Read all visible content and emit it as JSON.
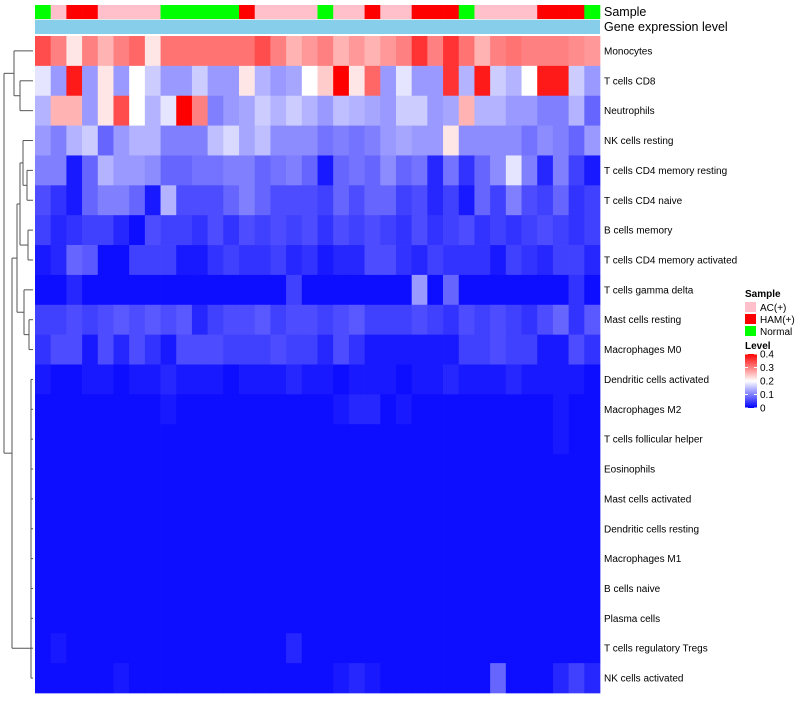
{
  "chart_data": {
    "type": "heatmap",
    "annotation_tracks": [
      "Sample",
      "Gene expression level"
    ],
    "rows": [
      "Monocytes",
      "T cells CD8",
      "Neutrophils",
      "NK cells resting",
      "T cells CD4 memory resting",
      "T cells CD4 naive",
      "B cells memory",
      "T cells CD4 memory activated",
      "T cells gamma delta",
      "Mast cells resting",
      "Macrophages M0",
      "Dendritic cells activated",
      "Macrophages M2",
      "T cells follicular helper",
      "Eosinophils",
      "Mast cells activated",
      "Dendritic cells resting",
      "Macrophages M1",
      "B cells naive",
      "Plasma cells",
      "T cells regulatory  Tregs",
      "NK cells activated"
    ],
    "sample_groups": [
      "N",
      "AC",
      "H",
      "H",
      "AC",
      "AC",
      "AC",
      "AC",
      "N",
      "N",
      "N",
      "N",
      "N",
      "H",
      "AC",
      "AC",
      "AC",
      "AC",
      "N",
      "AC",
      "AC",
      "H",
      "AC",
      "AC",
      "H",
      "H",
      "H",
      "N",
      "AC",
      "AC",
      "AC",
      "AC",
      "H",
      "H",
      "H",
      "N"
    ],
    "values": [
      [
        0.34,
        0.3,
        0.22,
        0.3,
        0.26,
        0.3,
        0.32,
        0.22,
        0.31,
        0.31,
        0.31,
        0.31,
        0.31,
        0.31,
        0.34,
        0.3,
        0.26,
        0.28,
        0.3,
        0.26,
        0.28,
        0.26,
        0.28,
        0.3,
        0.36,
        0.3,
        0.36,
        0.31,
        0.26,
        0.3,
        0.31,
        0.3,
        0.3,
        0.3,
        0.29,
        0.28
      ],
      [
        0.18,
        0.12,
        0.38,
        0.12,
        0.22,
        0.12,
        0.2,
        0.16,
        0.12,
        0.12,
        0.16,
        0.12,
        0.12,
        0.22,
        0.14,
        0.12,
        0.13,
        0.2,
        0.24,
        0.4,
        0.22,
        0.32,
        0.12,
        0.18,
        0.12,
        0.12,
        0.36,
        0.14,
        0.38,
        0.16,
        0.14,
        0.2,
        0.38,
        0.38,
        0.16,
        0.12
      ],
      [
        0.14,
        0.26,
        0.26,
        0.12,
        0.22,
        0.34,
        0.2,
        0.14,
        0.18,
        0.4,
        0.3,
        0.1,
        0.12,
        0.13,
        0.16,
        0.14,
        0.16,
        0.14,
        0.12,
        0.15,
        0.14,
        0.13,
        0.12,
        0.16,
        0.16,
        0.12,
        0.13,
        0.26,
        0.14,
        0.14,
        0.12,
        0.12,
        0.1,
        0.1,
        0.14,
        0.08
      ],
      [
        0.12,
        0.1,
        0.14,
        0.16,
        0.08,
        0.12,
        0.14,
        0.14,
        0.1,
        0.1,
        0.1,
        0.15,
        0.17,
        0.13,
        0.15,
        0.11,
        0.11,
        0.11,
        0.09,
        0.1,
        0.09,
        0.1,
        0.12,
        0.13,
        0.12,
        0.12,
        0.22,
        0.11,
        0.11,
        0.11,
        0.11,
        0.09,
        0.11,
        0.1,
        0.08,
        0.12
      ],
      [
        0.1,
        0.1,
        0.02,
        0.08,
        0.14,
        0.12,
        0.12,
        0.11,
        0.08,
        0.08,
        0.09,
        0.09,
        0.1,
        0.1,
        0.08,
        0.09,
        0.1,
        0.08,
        0.02,
        0.08,
        0.09,
        0.08,
        0.11,
        0.08,
        0.09,
        0.03,
        0.09,
        0.04,
        0.08,
        0.11,
        0.18,
        0.1,
        0.03,
        0.1,
        0.05,
        0.02
      ],
      [
        0.06,
        0.04,
        0.02,
        0.08,
        0.1,
        0.1,
        0.08,
        0.02,
        0.14,
        0.06,
        0.06,
        0.06,
        0.08,
        0.1,
        0.08,
        0.06,
        0.06,
        0.06,
        0.05,
        0.08,
        0.06,
        0.08,
        0.08,
        0.05,
        0.06,
        0.03,
        0.05,
        0.02,
        0.08,
        0.05,
        0.1,
        0.06,
        0.05,
        0.08,
        0.04,
        0.05
      ],
      [
        0.05,
        0.03,
        0.04,
        0.05,
        0.05,
        0.03,
        0.01,
        0.06,
        0.05,
        0.05,
        0.04,
        0.06,
        0.04,
        0.06,
        0.05,
        0.06,
        0.05,
        0.06,
        0.04,
        0.06,
        0.05,
        0.06,
        0.05,
        0.04,
        0.06,
        0.04,
        0.05,
        0.06,
        0.04,
        0.05,
        0.04,
        0.05,
        0.06,
        0.05,
        0.04,
        0.05
      ],
      [
        0.02,
        0.03,
        0.08,
        0.07,
        0.01,
        0.01,
        0.05,
        0.05,
        0.05,
        0.02,
        0.02,
        0.04,
        0.05,
        0.04,
        0.04,
        0.05,
        0.03,
        0.04,
        0.02,
        0.03,
        0.03,
        0.06,
        0.06,
        0.04,
        0.03,
        0.05,
        0.04,
        0.04,
        0.04,
        0.02,
        0.05,
        0.04,
        0.03,
        0.05,
        0.05,
        0.03
      ],
      [
        0.01,
        0.01,
        0.03,
        0.01,
        0.01,
        0.01,
        0.01,
        0.01,
        0.01,
        0.01,
        0.01,
        0.01,
        0.01,
        0.01,
        0.01,
        0.01,
        0.05,
        0.01,
        0.01,
        0.01,
        0.01,
        0.01,
        0.01,
        0.01,
        0.12,
        0.01,
        0.08,
        0.01,
        0.01,
        0.01,
        0.01,
        0.01,
        0.01,
        0.01,
        0.04,
        0.01
      ],
      [
        0.05,
        0.05,
        0.06,
        0.05,
        0.06,
        0.07,
        0.06,
        0.07,
        0.06,
        0.07,
        0.03,
        0.05,
        0.06,
        0.06,
        0.07,
        0.05,
        0.06,
        0.06,
        0.05,
        0.06,
        0.07,
        0.05,
        0.05,
        0.05,
        0.06,
        0.05,
        0.04,
        0.06,
        0.05,
        0.06,
        0.05,
        0.04,
        0.06,
        0.08,
        0.04,
        0.07
      ],
      [
        0.04,
        0.06,
        0.06,
        0.02,
        0.06,
        0.03,
        0.06,
        0.04,
        0.02,
        0.06,
        0.06,
        0.06,
        0.05,
        0.05,
        0.05,
        0.06,
        0.05,
        0.05,
        0.03,
        0.06,
        0.04,
        0.02,
        0.02,
        0.02,
        0.02,
        0.02,
        0.02,
        0.05,
        0.05,
        0.06,
        0.05,
        0.05,
        0.02,
        0.02,
        0.06,
        0.04
      ],
      [
        0.02,
        0.01,
        0.01,
        0.02,
        0.02,
        0.01,
        0.02,
        0.02,
        0.03,
        0.02,
        0.02,
        0.02,
        0.01,
        0.02,
        0.02,
        0.02,
        0.03,
        0.02,
        0.02,
        0.01,
        0.02,
        0.02,
        0.02,
        0.01,
        0.02,
        0.02,
        0.03,
        0.02,
        0.02,
        0.02,
        0.03,
        0.02,
        0.02,
        0.02,
        0.02,
        0.01
      ],
      [
        0.01,
        0.01,
        0.01,
        0.01,
        0.01,
        0.01,
        0.01,
        0.01,
        0.02,
        0.01,
        0.01,
        0.01,
        0.01,
        0.01,
        0.01,
        0.01,
        0.01,
        0.01,
        0.01,
        0.02,
        0.03,
        0.03,
        0.01,
        0.02,
        0.01,
        0.01,
        0.01,
        0.01,
        0.01,
        0.01,
        0.01,
        0.01,
        0.01,
        0.02,
        0.01,
        0.01
      ],
      [
        0.01,
        0.01,
        0.01,
        0.01,
        0.01,
        0.01,
        0.01,
        0.01,
        0.01,
        0.01,
        0.01,
        0.01,
        0.01,
        0.01,
        0.01,
        0.01,
        0.01,
        0.01,
        0.01,
        0.01,
        0.01,
        0.01,
        0.01,
        0.01,
        0.01,
        0.01,
        0.01,
        0.01,
        0.01,
        0.01,
        0.01,
        0.01,
        0.01,
        0.02,
        0.01,
        0.01
      ],
      [
        0.01,
        0.01,
        0.01,
        0.01,
        0.01,
        0.01,
        0.01,
        0.01,
        0.01,
        0.01,
        0.01,
        0.01,
        0.01,
        0.01,
        0.01,
        0.01,
        0.01,
        0.01,
        0.01,
        0.01,
        0.01,
        0.01,
        0.01,
        0.01,
        0.01,
        0.01,
        0.01,
        0.01,
        0.01,
        0.01,
        0.01,
        0.01,
        0.01,
        0.01,
        0.01,
        0.01
      ],
      [
        0.01,
        0.01,
        0.01,
        0.01,
        0.01,
        0.01,
        0.01,
        0.01,
        0.01,
        0.01,
        0.01,
        0.01,
        0.01,
        0.01,
        0.01,
        0.01,
        0.01,
        0.01,
        0.01,
        0.01,
        0.01,
        0.01,
        0.01,
        0.01,
        0.01,
        0.01,
        0.01,
        0.01,
        0.01,
        0.01,
        0.01,
        0.01,
        0.01,
        0.01,
        0.01,
        0.01
      ],
      [
        0.01,
        0.01,
        0.01,
        0.01,
        0.01,
        0.01,
        0.01,
        0.01,
        0.01,
        0.01,
        0.01,
        0.01,
        0.01,
        0.01,
        0.01,
        0.01,
        0.01,
        0.01,
        0.01,
        0.01,
        0.01,
        0.01,
        0.01,
        0.01,
        0.01,
        0.01,
        0.01,
        0.01,
        0.01,
        0.01,
        0.01,
        0.01,
        0.01,
        0.01,
        0.01,
        0.01
      ],
      [
        0.01,
        0.01,
        0.01,
        0.01,
        0.01,
        0.01,
        0.01,
        0.01,
        0.01,
        0.01,
        0.01,
        0.01,
        0.01,
        0.01,
        0.01,
        0.01,
        0.01,
        0.01,
        0.01,
        0.01,
        0.01,
        0.01,
        0.01,
        0.01,
        0.01,
        0.01,
        0.01,
        0.01,
        0.01,
        0.01,
        0.01,
        0.01,
        0.01,
        0.01,
        0.01,
        0.01
      ],
      [
        0.01,
        0.01,
        0.01,
        0.01,
        0.01,
        0.01,
        0.01,
        0.01,
        0.01,
        0.01,
        0.01,
        0.01,
        0.01,
        0.01,
        0.01,
        0.01,
        0.01,
        0.01,
        0.01,
        0.01,
        0.01,
        0.01,
        0.01,
        0.01,
        0.01,
        0.01,
        0.01,
        0.01,
        0.01,
        0.01,
        0.01,
        0.01,
        0.01,
        0.01,
        0.01,
        0.01
      ],
      [
        0.01,
        0.01,
        0.01,
        0.01,
        0.01,
        0.01,
        0.01,
        0.01,
        0.01,
        0.01,
        0.01,
        0.01,
        0.01,
        0.01,
        0.01,
        0.01,
        0.01,
        0.01,
        0.01,
        0.01,
        0.01,
        0.01,
        0.01,
        0.01,
        0.01,
        0.01,
        0.01,
        0.01,
        0.01,
        0.01,
        0.01,
        0.01,
        0.01,
        0.01,
        0.01,
        0.01
      ],
      [
        0.01,
        0.02,
        0.01,
        0.01,
        0.01,
        0.01,
        0.01,
        0.01,
        0.01,
        0.01,
        0.01,
        0.01,
        0.01,
        0.01,
        0.01,
        0.01,
        0.03,
        0.01,
        0.01,
        0.01,
        0.01,
        0.01,
        0.01,
        0.01,
        0.01,
        0.01,
        0.01,
        0.01,
        0.01,
        0.01,
        0.01,
        0.01,
        0.01,
        0.01,
        0.01,
        0.01
      ],
      [
        0.01,
        0.01,
        0.01,
        0.01,
        0.01,
        0.02,
        0.01,
        0.01,
        0.01,
        0.01,
        0.01,
        0.01,
        0.01,
        0.01,
        0.01,
        0.01,
        0.01,
        0.01,
        0.01,
        0.02,
        0.03,
        0.02,
        0.01,
        0.01,
        0.01,
        0.01,
        0.01,
        0.01,
        0.01,
        0.08,
        0.01,
        0.01,
        0.01,
        0.03,
        0.05,
        0.03
      ]
    ],
    "color_scale": {
      "min": 0,
      "max": 0.4,
      "low": "#0000ff",
      "mid": "#ffffff",
      "high": "#ff0000",
      "mid_value": 0.2
    },
    "legend": {
      "sample_title": "Sample",
      "sample_entries": [
        {
          "key": "AC",
          "label": "AC(+)",
          "color": "#ffc0cb"
        },
        {
          "key": "H",
          "label": "HAM(+)",
          "color": "#ff0000"
        },
        {
          "key": "N",
          "label": "Normal",
          "color": "#00ff00"
        }
      ],
      "level_title": "Level",
      "level_ticks": [
        "0.4",
        "0.3",
        "0.2",
        "0.1",
        "0"
      ],
      "level_tick_values": [
        0.4,
        0.3,
        0.2,
        0.1,
        0
      ],
      "position": "right"
    },
    "gene_expression_color": "#87ceeb"
  }
}
